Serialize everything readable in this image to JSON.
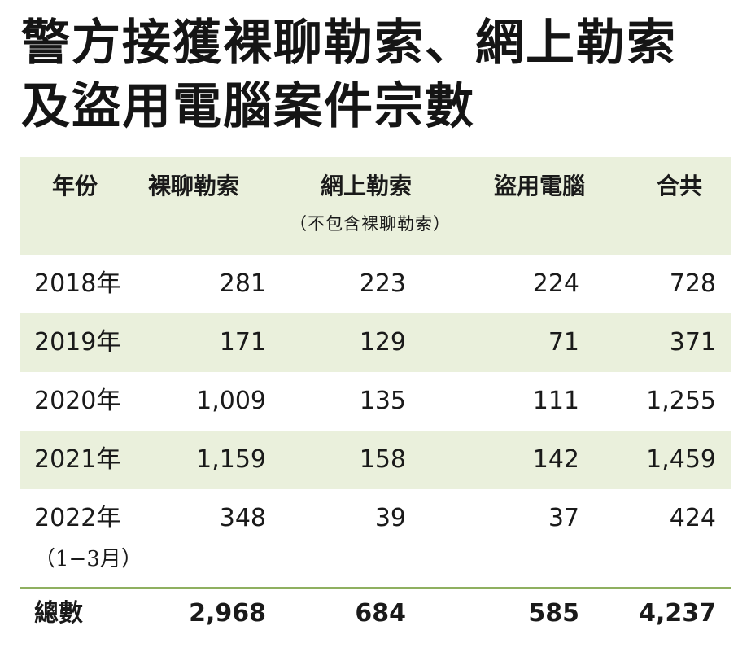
{
  "title": {
    "line1": "警方接獲裸聊勒索、網上勒索",
    "line2": "及盜用電腦案件宗數"
  },
  "table": {
    "headers": {
      "year": "年份",
      "naked_chat": "裸聊勒索",
      "online_extortion": "網上勒索",
      "online_extortion_note": "（不包含裸聊勒索）",
      "computer_theft": "盜用電腦",
      "total": "合共"
    },
    "rows": [
      {
        "year": "2018年",
        "naked_chat": "281",
        "online_extortion": "223",
        "computer_theft": "224",
        "total": "728"
      },
      {
        "year": "2019年",
        "naked_chat": "171",
        "online_extortion": "129",
        "computer_theft": "71",
        "total": "371"
      },
      {
        "year": "2020年",
        "naked_chat": "1,009",
        "online_extortion": "135",
        "computer_theft": "111",
        "total": "1,255"
      },
      {
        "year": "2021年",
        "naked_chat": "1,159",
        "online_extortion": "158",
        "computer_theft": "142",
        "total": "1,459"
      },
      {
        "year": "2022年",
        "year_note": "（1−3月）",
        "naked_chat": "348",
        "online_extortion": "39",
        "computer_theft": "37",
        "total": "424"
      }
    ],
    "totals": {
      "label": "總數",
      "naked_chat": "2,968",
      "online_extortion": "684",
      "computer_theft": "585",
      "total": "4,237"
    }
  },
  "colors": {
    "shade": "#eaf0dc",
    "rule": "#8fb060"
  }
}
